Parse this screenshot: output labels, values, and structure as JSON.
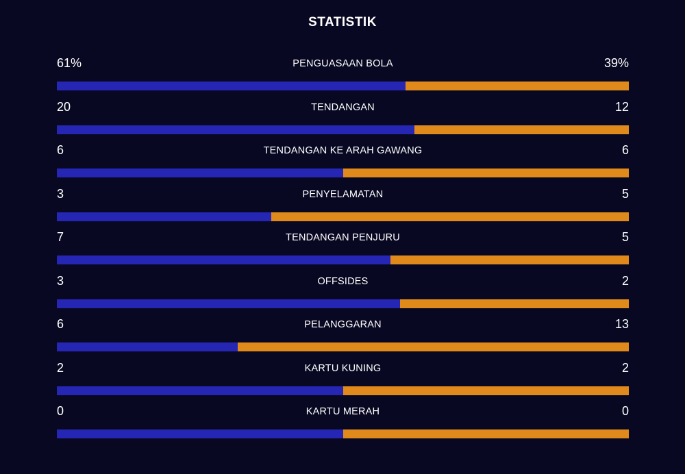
{
  "title": "STATISTIK",
  "colors": {
    "background": "#080822",
    "home": "#2526b4",
    "away": "#e08a1c"
  },
  "stats": [
    {
      "label": "PENGUASAAN BOLA",
      "home": "61%",
      "away": "39%",
      "home_share": 0.61
    },
    {
      "label": "TENDANGAN",
      "home": "20",
      "away": "12",
      "home_share": 0.625
    },
    {
      "label": "TENDANGAN KE ARAH GAWANG",
      "home": "6",
      "away": "6",
      "home_share": 0.5
    },
    {
      "label": "PENYELAMATAN",
      "home": "3",
      "away": "5",
      "home_share": 0.375
    },
    {
      "label": "TENDANGAN PENJURU",
      "home": "7",
      "away": "5",
      "home_share": 0.583
    },
    {
      "label": "OFFSIDES",
      "home": "3",
      "away": "2",
      "home_share": 0.6
    },
    {
      "label": "PELANGGARAN",
      "home": "6",
      "away": "13",
      "home_share": 0.316
    },
    {
      "label": "KARTU KUNING",
      "home": "2",
      "away": "2",
      "home_share": 0.5
    },
    {
      "label": "KARTU MERAH",
      "home": "0",
      "away": "0",
      "home_share": 0.5
    }
  ]
}
